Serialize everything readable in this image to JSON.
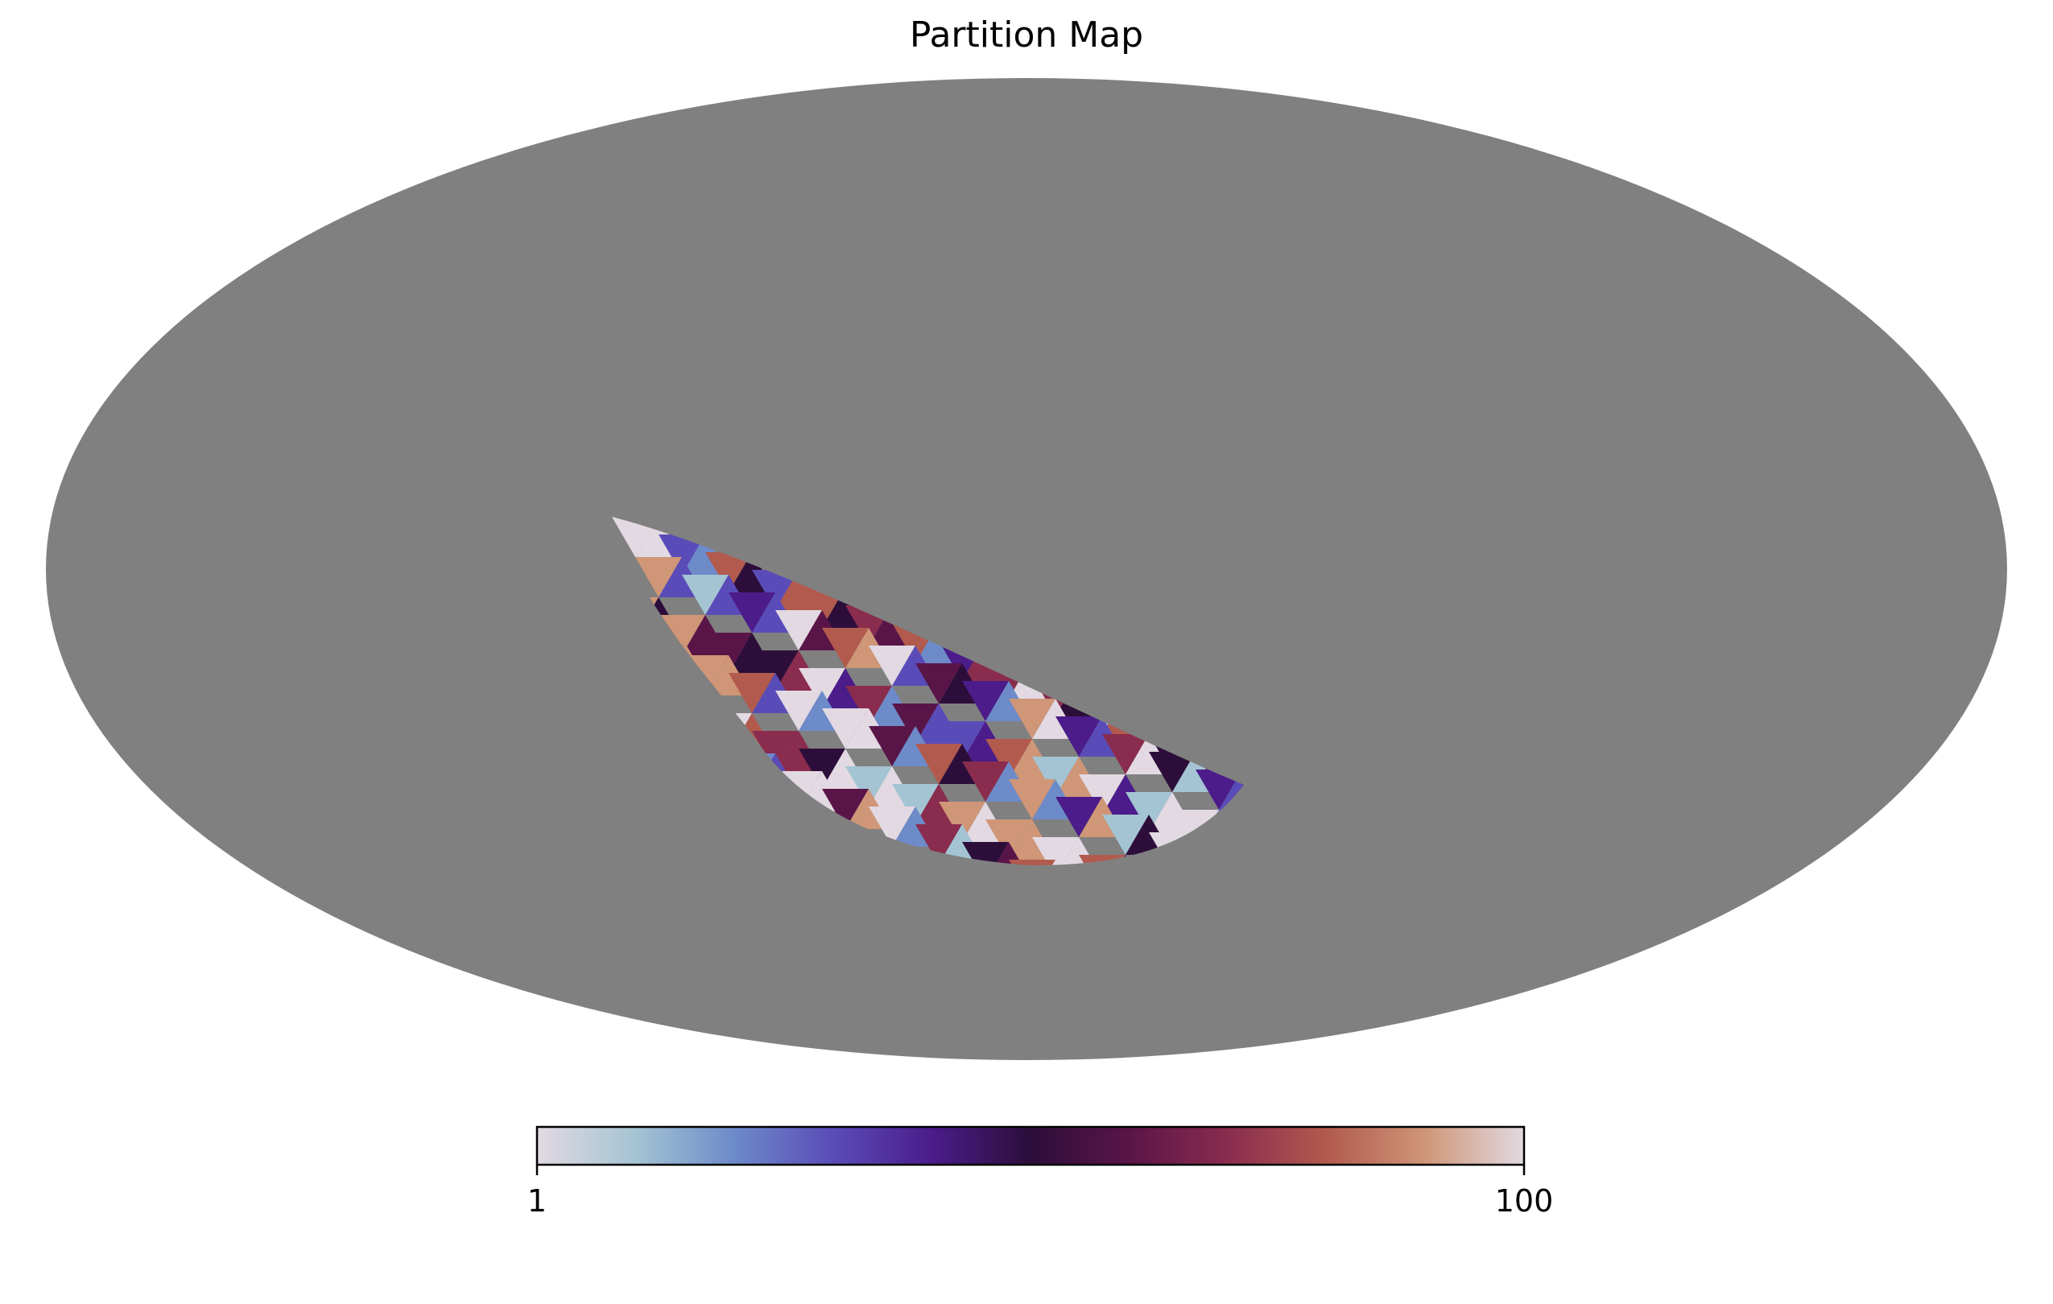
{
  "title": "Partition Map",
  "map": {
    "projection": "mollweide",
    "background_color": "#808080",
    "colormap": "twilight_shifted",
    "colormap_stops": [
      "#e2d9e2",
      "#a4c4d3",
      "#6d8ac9",
      "#5a4cb8",
      "#4b1c8a",
      "#2d0e3a",
      "#5a1548",
      "#8a2c4e",
      "#b25a4e",
      "#cf9677",
      "#e2d9e2"
    ]
  },
  "colorbar": {
    "min_label": "1",
    "max_label": "100",
    "min": 1,
    "max": 100
  }
}
